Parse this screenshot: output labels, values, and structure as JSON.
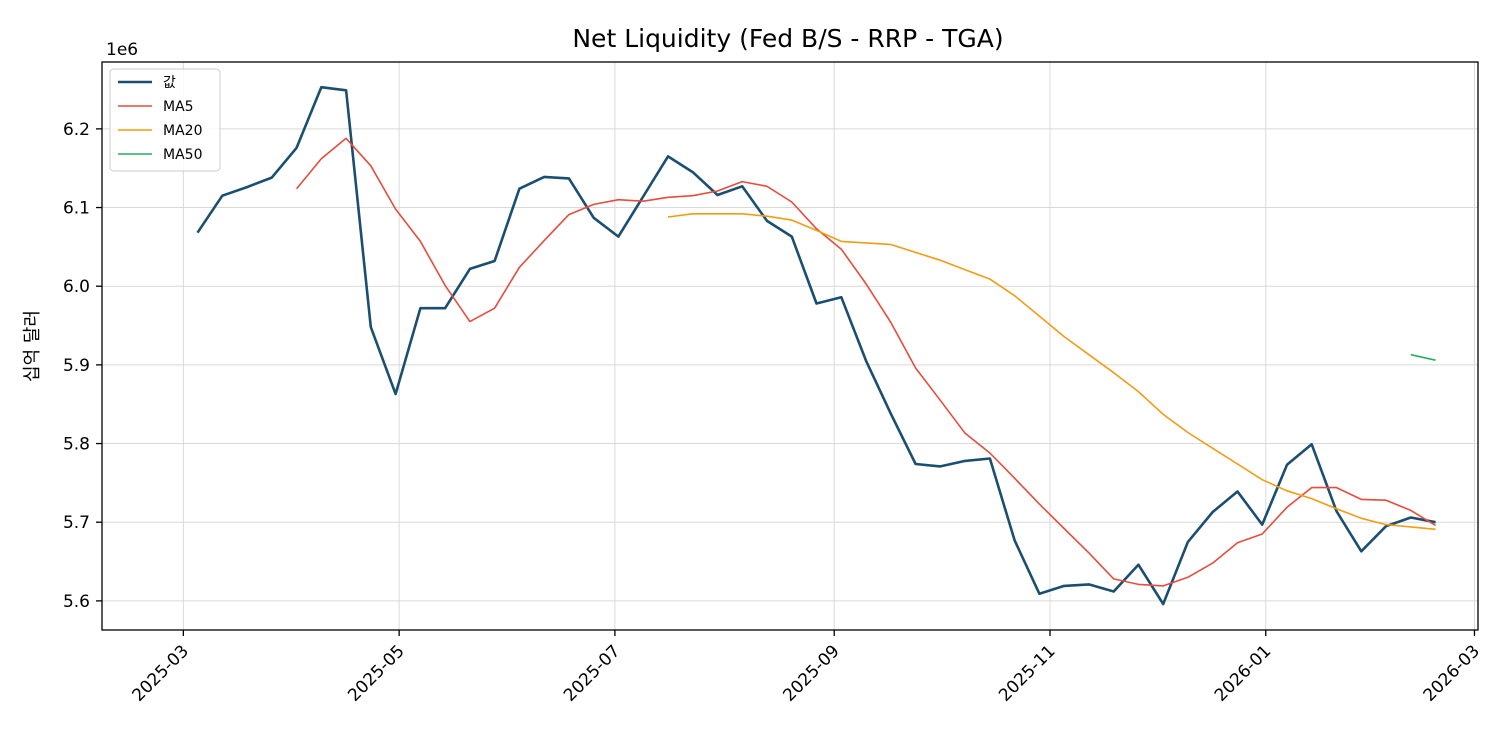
{
  "chart_data": {
    "type": "line",
    "title": "Net Liquidity (Fed B/S - RRP - TGA)",
    "ylabel": "십억 달러",
    "y_offset_label": "1e6",
    "ylim": [
      5.563,
      6.285
    ],
    "xlim": [
      "2025-02-06",
      "2026-03-02"
    ],
    "y_ticks": [
      5.6,
      5.7,
      5.8,
      5.9,
      6.0,
      6.1,
      6.2
    ],
    "y_tick_labels": [
      "5.6",
      "5.7",
      "5.8",
      "5.9",
      "6.0",
      "6.1",
      "6.2"
    ],
    "x_ticks": [
      "2025-03-01",
      "2025-05-01",
      "2025-07-01",
      "2025-09-01",
      "2025-11-01",
      "2026-01-01",
      "2026-03-01"
    ],
    "x_tick_labels": [
      "2025-03",
      "2025-05",
      "2025-07",
      "2025-09",
      "2025-11",
      "2026-01",
      "2026-03"
    ],
    "grid": true,
    "legend_position": "top-left",
    "x": [
      "2025-03-05",
      "2025-03-12",
      "2025-03-19",
      "2025-03-26",
      "2025-04-02",
      "2025-04-09",
      "2025-04-16",
      "2025-04-23",
      "2025-04-30",
      "2025-05-07",
      "2025-05-14",
      "2025-05-21",
      "2025-05-28",
      "2025-06-04",
      "2025-06-11",
      "2025-06-18",
      "2025-06-25",
      "2025-07-02",
      "2025-07-09",
      "2025-07-16",
      "2025-07-23",
      "2025-07-30",
      "2025-08-06",
      "2025-08-13",
      "2025-08-20",
      "2025-08-27",
      "2025-09-03",
      "2025-09-10",
      "2025-09-17",
      "2025-09-24",
      "2025-10-01",
      "2025-10-08",
      "2025-10-15",
      "2025-10-22",
      "2025-10-29",
      "2025-11-05",
      "2025-11-12",
      "2025-11-19",
      "2025-11-26",
      "2025-12-03",
      "2025-12-10",
      "2025-12-17",
      "2025-12-24",
      "2025-12-31",
      "2026-01-07",
      "2026-01-14",
      "2026-01-21",
      "2026-01-28",
      "2026-02-04",
      "2026-02-11",
      "2026-02-18"
    ],
    "series": [
      {
        "name": "값",
        "color": "#1b4f72",
        "values": [
          6.068,
          6.115,
          6.126,
          6.138,
          6.176,
          6.253,
          6.249,
          5.948,
          5.863,
          5.972,
          5.972,
          6.022,
          6.032,
          6.124,
          6.139,
          6.137,
          6.087,
          6.063,
          6.114,
          6.165,
          6.145,
          6.116,
          6.127,
          6.083,
          6.063,
          5.978,
          5.986,
          5.905,
          5.838,
          5.774,
          5.771,
          5.778,
          5.781,
          5.677,
          5.609,
          5.619,
          5.621,
          5.612,
          5.646,
          5.596,
          5.675,
          5.713,
          5.739,
          5.697,
          5.773,
          5.799,
          5.714,
          5.663,
          5.695,
          5.706,
          5.7
        ]
      },
      {
        "name": "MA5",
        "color": "#e74c3c",
        "values": [
          null,
          null,
          null,
          null,
          6.124,
          6.162,
          6.188,
          6.153,
          6.098,
          6.057,
          6.001,
          5.955,
          5.972,
          6.024,
          6.058,
          6.091,
          6.104,
          6.11,
          6.108,
          6.113,
          6.115,
          6.121,
          6.133,
          6.127,
          6.107,
          6.073,
          6.047,
          6.003,
          5.954,
          5.896,
          5.855,
          5.813,
          5.788,
          5.756,
          5.723,
          5.692,
          5.661,
          5.628,
          5.621,
          5.619,
          5.63,
          5.648,
          5.674,
          5.685,
          5.719,
          5.744,
          5.744,
          5.729,
          5.728,
          5.715,
          5.696
        ]
      },
      {
        "name": "MA20",
        "color": "#f39c12",
        "values": [
          null,
          null,
          null,
          null,
          null,
          null,
          null,
          null,
          null,
          null,
          null,
          null,
          null,
          null,
          null,
          null,
          null,
          null,
          null,
          6.088,
          6.092,
          6.092,
          6.092,
          6.089,
          6.084,
          6.071,
          6.057,
          6.055,
          6.053,
          6.043,
          6.033,
          6.021,
          6.009,
          5.988,
          5.962,
          5.936,
          5.913,
          5.89,
          5.866,
          5.837,
          5.814,
          5.794,
          5.774,
          5.754,
          5.74,
          5.73,
          5.717,
          5.705,
          5.697,
          5.694,
          5.691
        ]
      },
      {
        "name": "MA50",
        "color": "#27ae60",
        "values": [
          null,
          null,
          null,
          null,
          null,
          null,
          null,
          null,
          null,
          null,
          null,
          null,
          null,
          null,
          null,
          null,
          null,
          null,
          null,
          null,
          null,
          null,
          null,
          null,
          null,
          null,
          null,
          null,
          null,
          null,
          null,
          null,
          null,
          null,
          null,
          null,
          null,
          null,
          null,
          null,
          null,
          null,
          null,
          null,
          null,
          null,
          null,
          null,
          null,
          5.913,
          5.906
        ]
      }
    ]
  }
}
